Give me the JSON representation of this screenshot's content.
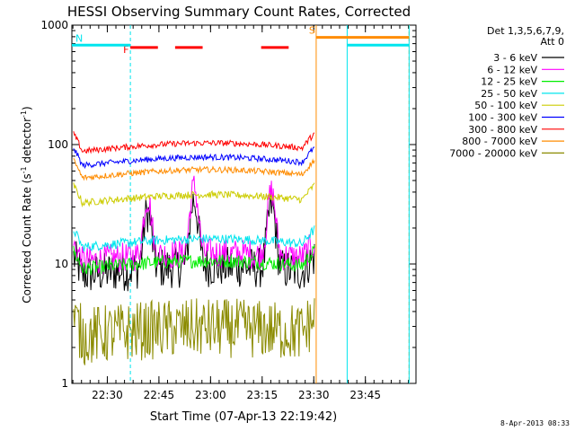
{
  "chart_data": {
    "type": "line",
    "title": "HESSI Observing Summary Count Rates, Corrected",
    "xlabel": "Start Time (07-Apr-13 22:19:42)",
    "ylabel": "Corrected Count Rate (s",
    "ylabel_sup1": "-1",
    "ylabel_mid": " detector",
    "ylabel_sup2": "-1",
    "ylabel_end": ")",
    "yscale": "log",
    "ylim": [
      1,
      1000
    ],
    "xlim_minutes": [
      0,
      100
    ],
    "y_ticks": [
      {
        "value": 1,
        "label": "1"
      },
      {
        "value": 10,
        "label": "10"
      },
      {
        "value": 100,
        "label": "100"
      },
      {
        "value": 1000,
        "label": "1000"
      }
    ],
    "x_ticks": [
      {
        "minute": 10.3,
        "label": "22:30"
      },
      {
        "minute": 25.3,
        "label": "22:45"
      },
      {
        "minute": 40.3,
        "label": "23:00"
      },
      {
        "minute": 55.3,
        "label": "23:15"
      },
      {
        "minute": 70.3,
        "label": "23:30"
      },
      {
        "minute": 85.3,
        "label": "23:45"
      }
    ],
    "legend": {
      "header_line1": "Det 1,3,5,6,7,9,",
      "header_line2": "Att 0",
      "placement": "right-outside"
    },
    "series": [
      {
        "name": "3 - 6 keV",
        "color": "#000000",
        "base": 8.5,
        "noise": 0.35,
        "spikes": true
      },
      {
        "name": "6 - 12 keV",
        "color": "#ff00ff",
        "base": 11,
        "noise": 0.25,
        "spikes": true
      },
      {
        "name": "12 - 25 keV",
        "color": "#00ee00",
        "base": 9.5,
        "noise": 0.12,
        "spikes": false
      },
      {
        "name": "25 - 50 keV",
        "color": "#00e5ee",
        "base": 14.5,
        "noise": 0.08,
        "spikes": false
      },
      {
        "name": "50 - 100 keV",
        "color": "#cccc00",
        "base": 34,
        "noise": 0.06,
        "spikes": false
      },
      {
        "name": "100 - 300 keV",
        "color": "#0000ff",
        "base": 70,
        "noise": 0.05,
        "spikes": false
      },
      {
        "name": "300 - 800 keV",
        "color": "#ff0000",
        "base": 92,
        "noise": 0.05,
        "spikes": false
      },
      {
        "name": "800 - 7000 keV",
        "color": "#ff8c00",
        "base": 55,
        "noise": 0.05,
        "spikes": false
      },
      {
        "name": "7000 - 20000 keV",
        "color": "#8b8b00",
        "base": 2.6,
        "noise": 0.5,
        "spikes": false
      }
    ],
    "flags": [
      {
        "label": "F",
        "color": "#ff0000",
        "segments": [
          [
            17,
            25
          ],
          [
            30,
            38
          ],
          [
            55,
            63
          ]
        ],
        "y": 650
      },
      {
        "label": "N",
        "color": "#00e5ee",
        "segments": [
          [
            0,
            17
          ],
          [
            80,
            98
          ]
        ],
        "y": 680
      },
      {
        "label": "S",
        "color": "#ff8c00",
        "segments": [
          [
            71,
            98
          ]
        ],
        "y": 790
      }
    ],
    "vlines": [
      {
        "minute": 17,
        "color": "#00e5ee",
        "style": "dashed"
      },
      {
        "minute": 71,
        "color": "#ff8c00",
        "style": "solid"
      },
      {
        "minute": 80,
        "color": "#00e5ee",
        "style": "solid"
      },
      {
        "minute": 98,
        "color": "#ff8c00",
        "style": "dashed"
      },
      {
        "minute": 98,
        "color": "#00e5ee",
        "style": "solid"
      }
    ]
  },
  "footer": {
    "timestamp": "8-Apr-2013 08:33"
  }
}
